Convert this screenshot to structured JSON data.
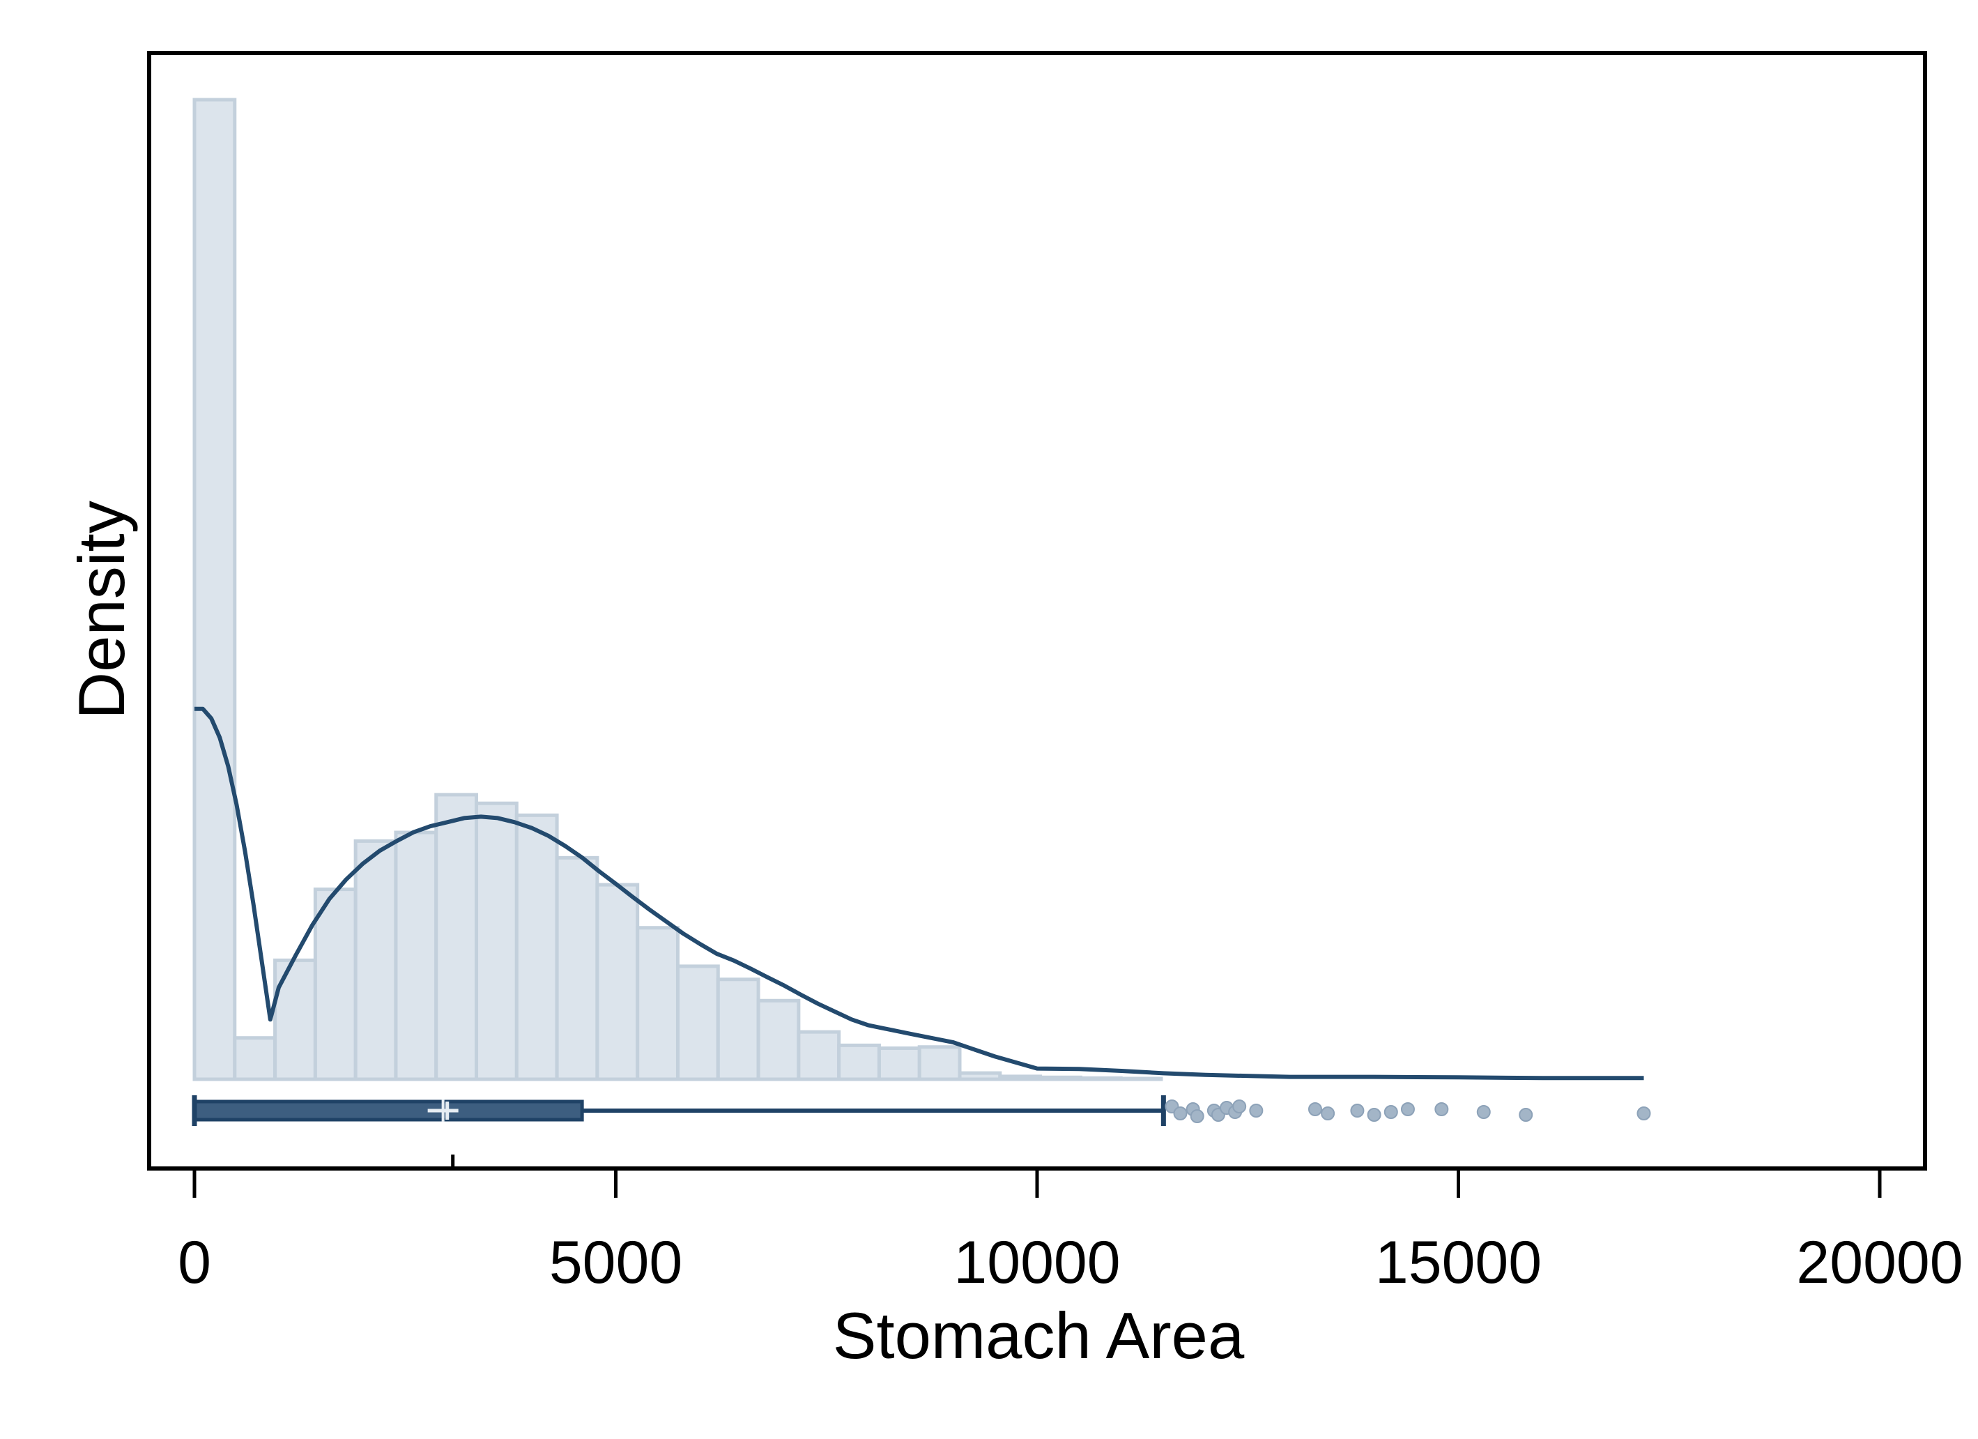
{
  "chart_data": {
    "type": "histogram",
    "title": "",
    "xlabel": "Stomach Area",
    "ylabel": "Density",
    "xlim": [
      -500,
      20000
    ],
    "xticks": [
      0,
      5000,
      10000,
      15000,
      20000
    ],
    "xtick_labels": [
      "0",
      "5000",
      "10000",
      "15000",
      "20000"
    ],
    "y_tick_labels": "none",
    "grid": false,
    "legend": "none",
    "histogram": {
      "bin_width": 478,
      "bin_starts": [
        0,
        478,
        956,
        1434,
        1912,
        2390,
        2868,
        3346,
        3824,
        4302,
        4780,
        5258,
        5736,
        6214,
        6692,
        7170,
        7648,
        8126,
        8604,
        9082,
        9560,
        10038,
        10516,
        10994
      ],
      "densities": [
        0.00041,
        1.73e-05,
        4.98e-05,
        7.95e-05,
        9.97e-05,
        0.0001033,
        0.0001191,
        0.0001155,
        0.0001105,
        9.27e-05,
        8.14e-05,
        6.34e-05,
        4.73e-05,
        4.18e-05,
        3.29e-05,
        1.98e-05,
        1.42e-05,
        1.3e-05,
        1.35e-05,
        2.6e-06,
        1.2e-06,
        8e-07,
        5e-07,
        3e-07
      ]
    },
    "density_curve": {
      "x": [
        0,
        100,
        200,
        300,
        400,
        500,
        600,
        700,
        800,
        900,
        1000,
        1200,
        1400,
        1600,
        1800,
        2000,
        2200,
        2400,
        2600,
        2800,
        3000,
        3200,
        3400,
        3600,
        3800,
        4000,
        4200,
        4400,
        4600,
        4800,
        5000,
        5200,
        5400,
        5600,
        5800,
        6000,
        6200,
        6400,
        6600,
        6800,
        7000,
        7200,
        7400,
        7600,
        7800,
        8000,
        8500,
        9000,
        9500,
        10000,
        10500,
        11000,
        11500,
        12000,
        13000,
        14000,
        15000,
        16000,
        17200
      ],
      "y": [
        0.000155,
        0.000155,
        0.000151,
        0.000143,
        0.000131,
        0.000115,
        9.55e-05,
        7.33e-05,
        4.92e-05,
        2.5e-05,
        3.84e-05,
        5.18e-05,
        6.46e-05,
        7.54e-05,
        8.36e-05,
        9.03e-05,
        9.57e-05,
        9.97e-05,
        0.0001034,
        0.0001059,
        0.0001076,
        0.0001093,
        0.0001099,
        0.0001093,
        0.0001076,
        0.0001052,
        0.0001019,
        9.76e-05,
        9.28e-05,
        8.71e-05,
        8.18e-05,
        7.63e-05,
        7.1e-05,
        6.6e-05,
        6.1e-05,
        5.66e-05,
        5.25e-05,
        4.97e-05,
        4.63e-05,
        4.27e-05,
        3.92e-05,
        3.53e-05,
        3.16e-05,
        2.83e-05,
        2.5e-05,
        2.26e-05,
        1.9e-05,
        1.55e-05,
        9.5e-06,
        4.5e-06,
        4.3e-06,
        3.5e-06,
        2.5e-06,
        1.8e-06,
        1e-06,
        1e-06,
        8e-07,
        5e-07,
        5e-07
      ]
    },
    "boxplot": {
      "min": 0,
      "q1": 0,
      "median": 3000,
      "mean": 2950,
      "q3": 4600,
      "whisker_high": 11500,
      "outliers": [
        11600,
        11700,
        11850,
        11900,
        12100,
        12150,
        12250,
        12350,
        12400,
        12600,
        13300,
        13450,
        13800,
        14000,
        14200,
        14400,
        14800,
        15300,
        15800,
        17200
      ]
    },
    "colors": {
      "bar_fill": "#dce4ec",
      "bar_edge": "#c3d0dc",
      "curve": "#234a6e",
      "box_fill": "#3d5e80",
      "box_edge": "#1f4266",
      "outlier": "#a3b5c7",
      "frame": "#000000"
    }
  }
}
